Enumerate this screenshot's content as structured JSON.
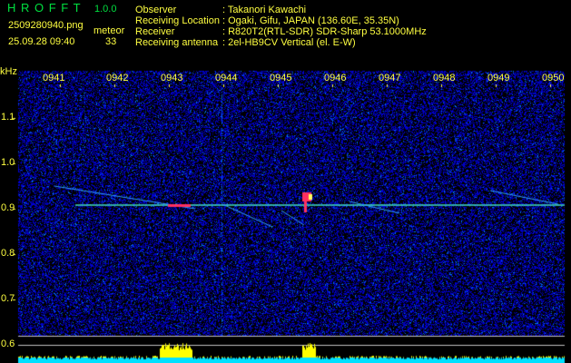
{
  "header": {
    "app_title": "H R O F F T",
    "version": "1.0.0",
    "filename": "2509280940.png",
    "datetime": "25.09.28 09:40",
    "meteor_label": "meteor",
    "meteor_count": "33"
  },
  "info": [
    {
      "key": "Observer",
      "value": ": Takanori Kawachi"
    },
    {
      "key": "Receiving Location",
      "value": ": Ogaki, Gifu, JAPAN (136.60E, 35.35N)"
    },
    {
      "key": "Receiver",
      "value": ": R820T2(RTL-SDR) SDR-Sharp 53.1000MHz"
    },
    {
      "key": "Receiving antenna",
      "value": ": 2el-HB9CV Vertical (el. E-W)"
    }
  ],
  "spectrogram": {
    "unit_label": "kHz",
    "time_ticks": [
      "0941",
      "0942",
      "0943",
      "0944",
      "0945",
      "0946",
      "0947",
      "0948",
      "0949",
      "0950"
    ],
    "freq_ticks": [
      "1.1",
      "1.0",
      "0.9",
      "0.8",
      "0.7",
      "0.6"
    ],
    "colors": {
      "text": "#ffff40",
      "title": "#00e040",
      "background_noise": "#1020c0",
      "carrier": "#40e0c0",
      "meteor_head": "#ff3060",
      "power_bar": "#00e0ff",
      "power_peak": "#ffff00"
    }
  }
}
